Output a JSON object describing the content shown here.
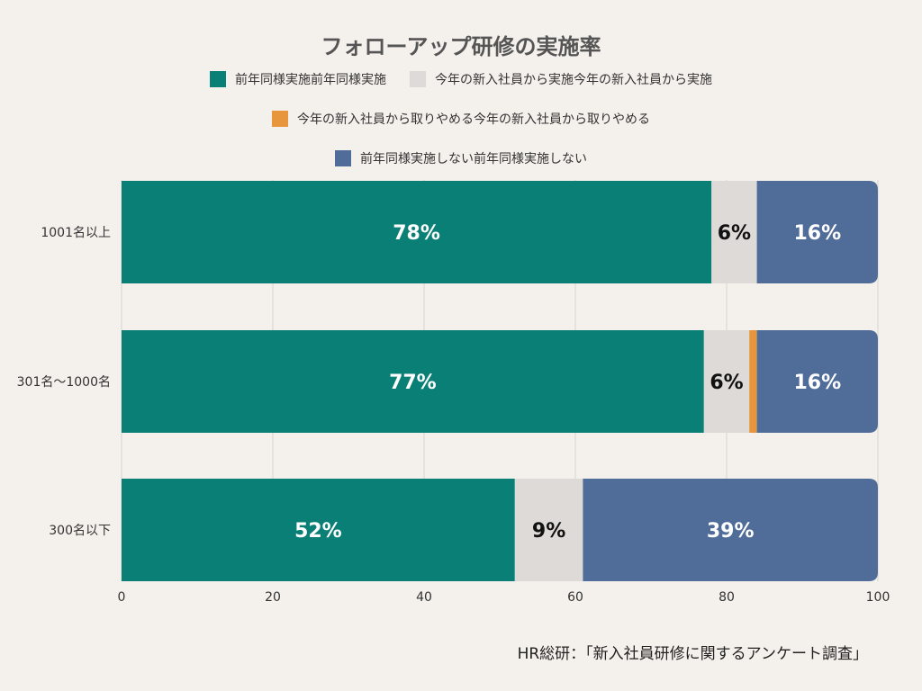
{
  "chart_data": {
    "type": "bar",
    "orientation": "horizontal",
    "stacked": true,
    "title": "フォローアップ研修の実施率",
    "categories": [
      "1001名以上",
      "301名〜1000名",
      "300名以下"
    ],
    "series": [
      {
        "name": "前年同様実施前年同様実施",
        "color": "#0a7f76",
        "values": [
          78,
          77,
          52
        ],
        "labels": [
          "78%",
          "77%",
          "52%"
        ]
      },
      {
        "name": "今年の新入社員から実施今年の新入社員から実施",
        "color": "#dedad7",
        "values": [
          6,
          6,
          9
        ],
        "labels": [
          "6%",
          "6%",
          "9%"
        ]
      },
      {
        "name": "今年の新入社員から取りやめる今年の新入社員から取りやめる",
        "color": "#e8963e",
        "values": [
          0,
          1,
          0
        ],
        "labels": [
          "",
          "",
          ""
        ]
      },
      {
        "name": "前年同様実施しない前年同様実施しない",
        "color": "#506d9a",
        "values": [
          16,
          16,
          39
        ],
        "labels": [
          "16%",
          "16%",
          "39%"
        ]
      }
    ],
    "xlim": [
      0,
      100
    ],
    "xticks": [
      "0",
      "20",
      "40",
      "60",
      "80",
      "100"
    ],
    "grid": true,
    "legend_position": "top"
  },
  "source": "HR総研：「新入社員研修に関するアンケート調査」"
}
